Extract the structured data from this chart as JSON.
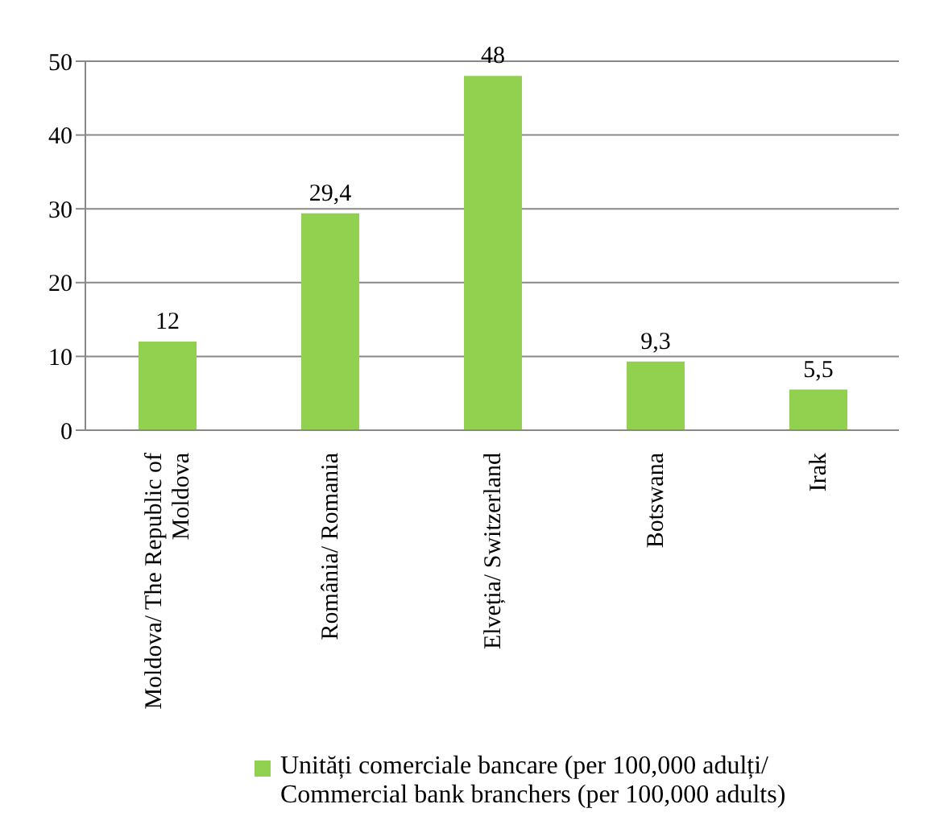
{
  "chart_data": {
    "type": "bar",
    "categories": [
      "Moldova/ The Republic of Moldova",
      "România/ Romania",
      "Elveția/ Switzerland",
      "Botswana",
      "Irak"
    ],
    "series": [
      {
        "name": "Unități comerciale bancare (per 100,000 adulți/ Commercial bank branchers (per 100,000 adults)",
        "color": "#92d050",
        "values": [
          12,
          29.4,
          48,
          9.3,
          5.5
        ],
        "value_labels": [
          "12",
          "29,4",
          "48",
          "9,3",
          "5,5"
        ]
      }
    ],
    "ylim": [
      0,
      50
    ],
    "yticks": [
      0,
      10,
      20,
      30,
      40,
      50
    ],
    "grid": "y",
    "legend": "bottom"
  }
}
